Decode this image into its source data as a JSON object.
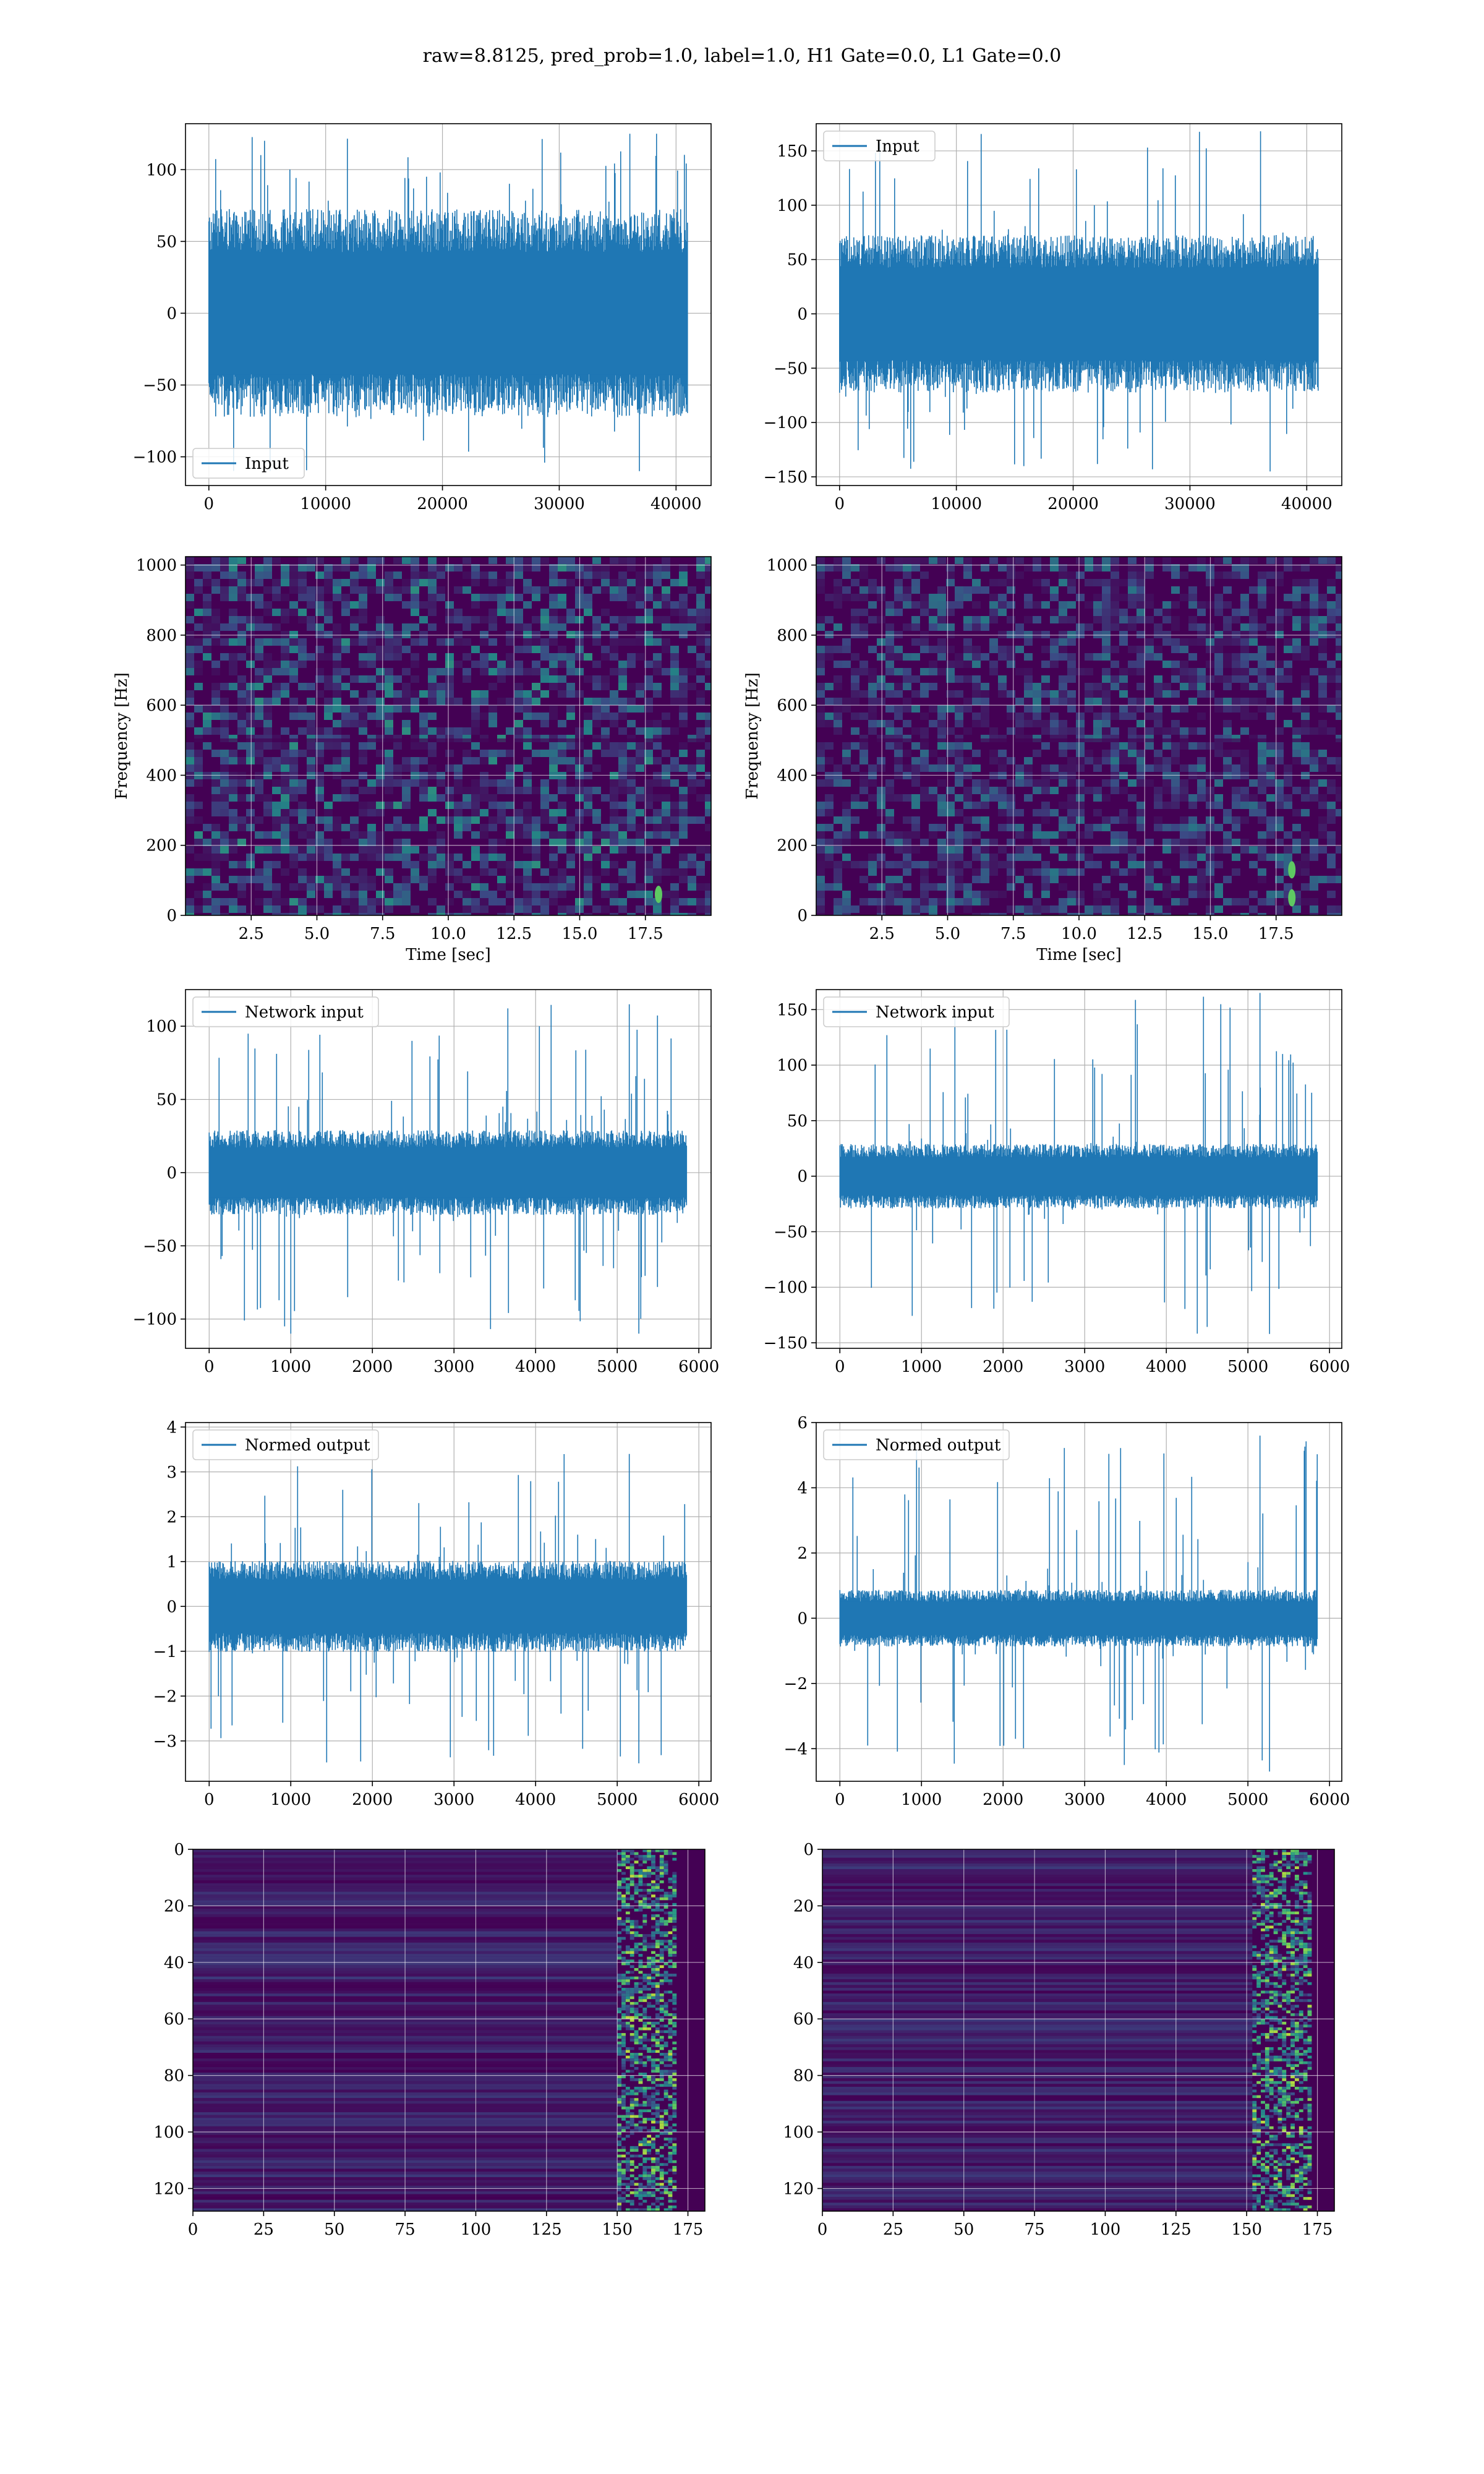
{
  "figure": {
    "suptitle": "raw=8.8125, pred_prob=1.0, label=1.0, H1 Gate=0.0, L1 Gate=0.0"
  },
  "colors": {
    "series": "#1f77b4",
    "grid": "#b0b0b0",
    "viridis_dark": "#440154",
    "viridis_blue": "#3b528b",
    "viridis_teal": "#21918c",
    "viridis_green": "#5ec962",
    "viridis_yellow": "#fde725"
  },
  "chart_data": [
    {
      "id": "p1",
      "type": "line",
      "xlim": [
        -2000,
        43000
      ],
      "ylim": [
        -120,
        132
      ],
      "xticks": [
        0,
        10000,
        20000,
        30000,
        40000
      ],
      "yticks": [
        -100,
        -50,
        0,
        50,
        100
      ],
      "xticklabels": [
        "0",
        "10000",
        "20000",
        "30000",
        "40000"
      ],
      "yticklabels": [
        "−100",
        "−50",
        "0",
        "50",
        "100"
      ],
      "xlabel": "",
      "ylabel": "",
      "grid": true,
      "legend": {
        "entry": "Input",
        "placement": "lower-left"
      },
      "series": [
        {
          "name": "Input",
          "x_range": [
            0,
            40960
          ],
          "band": [
            -50,
            50
          ],
          "extremes": [
            -110,
            125
          ]
        }
      ]
    },
    {
      "id": "p2",
      "type": "line",
      "xlim": [
        -2000,
        43000
      ],
      "ylim": [
        -158,
        175
      ],
      "xticks": [
        0,
        10000,
        20000,
        30000,
        40000
      ],
      "yticks": [
        -150,
        -100,
        -50,
        0,
        50,
        100,
        150
      ],
      "xticklabels": [
        "0",
        "10000",
        "20000",
        "30000",
        "40000"
      ],
      "yticklabels": [
        "−150",
        "−100",
        "−50",
        "0",
        "50",
        "100",
        "150"
      ],
      "xlabel": "",
      "ylabel": "",
      "grid": true,
      "legend": {
        "entry": "Input",
        "placement": "upper-left"
      },
      "series": [
        {
          "name": "Input",
          "x_range": [
            0,
            40960
          ],
          "band": [
            -50,
            50
          ],
          "extremes": [
            -145,
            168
          ]
        }
      ]
    },
    {
      "id": "p3",
      "type": "heatmap",
      "xlim": [
        0,
        20
      ],
      "ylim": [
        0,
        1024
      ],
      "xticks": [
        2.5,
        5.0,
        7.5,
        10.0,
        12.5,
        15.0,
        17.5
      ],
      "yticks": [
        0,
        200,
        400,
        600,
        800,
        1000
      ],
      "xticklabels": [
        "2.5",
        "5.0",
        "7.5",
        "10.0",
        "12.5",
        "15.0",
        "17.5"
      ],
      "yticklabels": [
        "0",
        "200",
        "400",
        "600",
        "800",
        "1000"
      ],
      "xlabel": "Time [sec]",
      "ylabel": "Frequency [Hz]",
      "grid": true,
      "colormap": "viridis",
      "hotspots": [
        {
          "t": 18.0,
          "f": 60
        }
      ]
    },
    {
      "id": "p4",
      "type": "heatmap",
      "xlim": [
        0,
        20
      ],
      "ylim": [
        0,
        1024
      ],
      "xticks": [
        2.5,
        5.0,
        7.5,
        10.0,
        12.5,
        15.0,
        17.5
      ],
      "yticks": [
        0,
        200,
        400,
        600,
        800,
        1000
      ],
      "xticklabels": [
        "2.5",
        "5.0",
        "7.5",
        "10.0",
        "12.5",
        "15.0",
        "17.5"
      ],
      "yticklabels": [
        "0",
        "200",
        "400",
        "600",
        "800",
        "1000"
      ],
      "xlabel": "Time [sec]",
      "ylabel": "Frequency [Hz]",
      "grid": true,
      "colormap": "viridis",
      "hotspots": [
        {
          "t": 18.1,
          "f": 50
        },
        {
          "t": 18.1,
          "f": 130
        }
      ]
    },
    {
      "id": "p5",
      "type": "line",
      "xlim": [
        -290,
        6150
      ],
      "ylim": [
        -120,
        125
      ],
      "xticks": [
        0,
        1000,
        2000,
        3000,
        4000,
        5000,
        6000
      ],
      "yticks": [
        -100,
        -50,
        0,
        50,
        100
      ],
      "xticklabels": [
        "0",
        "1000",
        "2000",
        "3000",
        "4000",
        "5000",
        "6000"
      ],
      "yticklabels": [
        "−100",
        "−50",
        "0",
        "50",
        "100"
      ],
      "xlabel": "",
      "ylabel": "",
      "grid": true,
      "legend": {
        "entry": "Network input",
        "placement": "upper-left"
      },
      "series": [
        {
          "name": "Network input",
          "x_range": [
            0,
            5850
          ],
          "band": [
            -20,
            20
          ],
          "extremes": [
            -110,
            115
          ]
        }
      ]
    },
    {
      "id": "p6",
      "type": "line",
      "xlim": [
        -290,
        6150
      ],
      "ylim": [
        -155,
        168
      ],
      "xticks": [
        0,
        1000,
        2000,
        3000,
        4000,
        5000,
        6000
      ],
      "yticks": [
        -150,
        -100,
        -50,
        0,
        50,
        100,
        150
      ],
      "xticklabels": [
        "0",
        "1000",
        "2000",
        "3000",
        "4000",
        "5000",
        "6000"
      ],
      "yticklabels": [
        "−150",
        "−100",
        "−50",
        "0",
        "50",
        "100",
        "150"
      ],
      "xlabel": "",
      "ylabel": "",
      "grid": true,
      "legend": {
        "entry": "Network input",
        "placement": "upper-left"
      },
      "series": [
        {
          "name": "Network input",
          "x_range": [
            0,
            5850
          ],
          "band": [
            -20,
            20
          ],
          "extremes": [
            -142,
            165
          ]
        }
      ]
    },
    {
      "id": "p7",
      "type": "line",
      "xlim": [
        -290,
        6150
      ],
      "ylim": [
        -3.9,
        4.1
      ],
      "xticks": [
        0,
        1000,
        2000,
        3000,
        4000,
        5000,
        6000
      ],
      "yticks": [
        -3,
        -2,
        -1,
        0,
        1,
        2,
        3,
        4
      ],
      "xticklabels": [
        "0",
        "1000",
        "2000",
        "3000",
        "4000",
        "5000",
        "6000"
      ],
      "yticklabels": [
        "−3",
        "−2",
        "−1",
        "0",
        "1",
        "2",
        "3",
        "4"
      ],
      "xlabel": "",
      "ylabel": "",
      "grid": true,
      "legend": {
        "entry": "Normed output",
        "placement": "upper-left"
      },
      "series": [
        {
          "name": "Normed output",
          "x_range": [
            0,
            5850
          ],
          "band": [
            -0.7,
            0.7
          ],
          "extremes": [
            -3.5,
            3.4
          ]
        }
      ]
    },
    {
      "id": "p8",
      "type": "line",
      "xlim": [
        -290,
        6150
      ],
      "ylim": [
        -5.0,
        6.0
      ],
      "xticks": [
        0,
        1000,
        2000,
        3000,
        4000,
        5000,
        6000
      ],
      "yticks": [
        -4,
        -2,
        0,
        2,
        4,
        6
      ],
      "xticklabels": [
        "0",
        "1000",
        "2000",
        "3000",
        "4000",
        "5000",
        "6000"
      ],
      "yticklabels": [
        "−4",
        "−2",
        "0",
        "2",
        "4",
        "6"
      ],
      "xlabel": "",
      "ylabel": "",
      "grid": true,
      "legend": {
        "entry": "Normed output",
        "placement": "upper-left"
      },
      "series": [
        {
          "name": "Normed output",
          "x_range": [
            0,
            5850
          ],
          "band": [
            -0.6,
            0.6
          ],
          "extremes": [
            -4.7,
            5.6
          ]
        }
      ]
    },
    {
      "id": "p9",
      "type": "heatmap",
      "xlim": [
        0,
        181
      ],
      "ylim": [
        128,
        0
      ],
      "xticks": [
        0,
        25,
        50,
        75,
        100,
        125,
        150,
        175
      ],
      "yticks": [
        0,
        20,
        40,
        60,
        80,
        100,
        120
      ],
      "xticklabels": [
        "0",
        "25",
        "50",
        "75",
        "100",
        "125",
        "150",
        "175"
      ],
      "yticklabels": [
        "0",
        "20",
        "40",
        "60",
        "80",
        "100",
        "120"
      ],
      "xlabel": "",
      "ylabel": "",
      "grid": true,
      "colormap": "viridis",
      "active_columns": [
        150,
        170
      ]
    },
    {
      "id": "p10",
      "type": "heatmap",
      "xlim": [
        0,
        181
      ],
      "ylim": [
        128,
        0
      ],
      "xticks": [
        0,
        25,
        50,
        75,
        100,
        125,
        150,
        175
      ],
      "yticks": [
        0,
        20,
        40,
        60,
        80,
        100,
        120
      ],
      "xticklabels": [
        "0",
        "25",
        "50",
        "75",
        "100",
        "125",
        "150",
        "175"
      ],
      "yticklabels": [
        "0",
        "20",
        "40",
        "60",
        "80",
        "100",
        "120"
      ],
      "xlabel": "",
      "ylabel": "",
      "grid": true,
      "colormap": "viridis",
      "active_columns": [
        152,
        172
      ]
    }
  ]
}
